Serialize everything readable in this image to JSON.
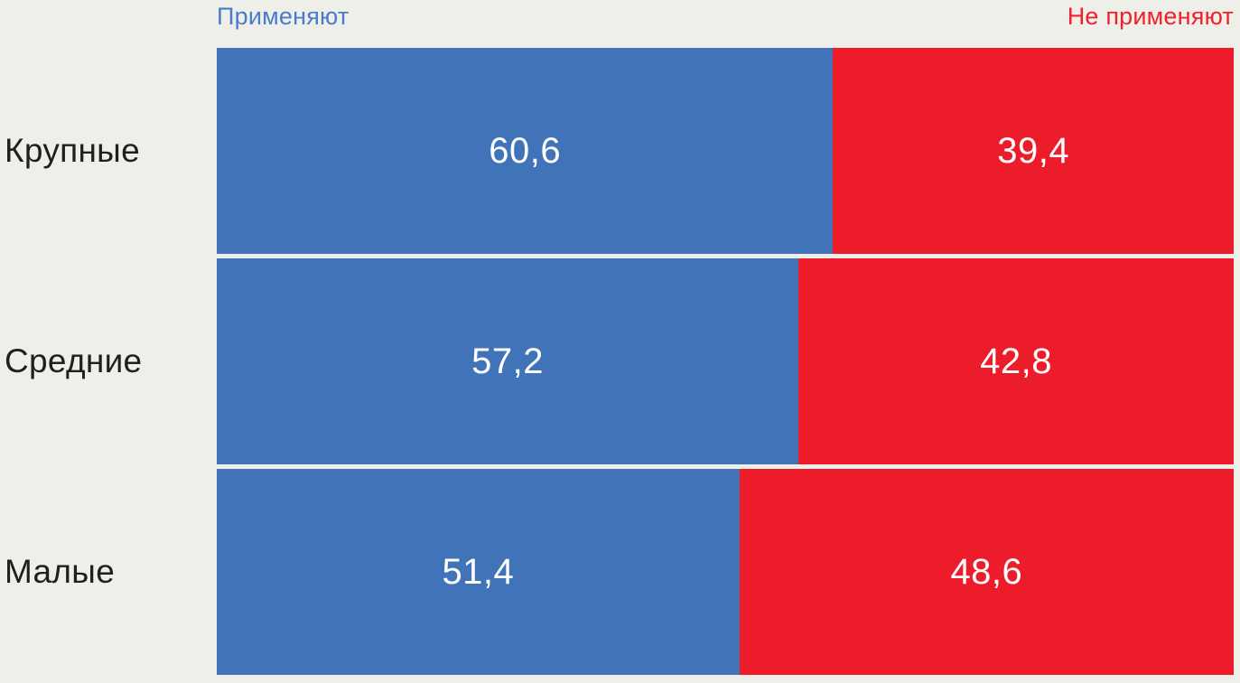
{
  "chart_data": {
    "type": "bar",
    "orientation": "horizontal",
    "stacked_100_percent": true,
    "categories": [
      "Крупные",
      "Средние",
      "Малые"
    ],
    "series": [
      {
        "name": "Применяют",
        "values": [
          60.6,
          57.2,
          51.4
        ],
        "color": "#4173b8",
        "label_color": "#4a7ccd"
      },
      {
        "name": "Не применяют",
        "values": [
          39.4,
          42.8,
          48.6
        ],
        "color": "#ed1c2b",
        "label_color": "#f0202e"
      }
    ],
    "value_labels": [
      [
        "60,6",
        "57,2",
        "51,4"
      ],
      [
        "39,4",
        "42,8",
        "48,6"
      ]
    ],
    "title": "",
    "xlabel": "",
    "ylabel": "",
    "xlim": [
      0,
      100
    ],
    "grid": false,
    "legend_position": "top",
    "decimal_separator": ","
  },
  "legend": {
    "apply_label": "Применяют",
    "not_apply_label": "Не применяют"
  },
  "colors": {
    "background": "#efefe9",
    "bar_apply": "#4173b8",
    "bar_not_apply": "#ed1c2b",
    "legend_apply_text": "#4a7ccd",
    "legend_not_apply_text": "#f0202e",
    "category_text": "#1f1f1f",
    "value_text": "#ffffff"
  }
}
